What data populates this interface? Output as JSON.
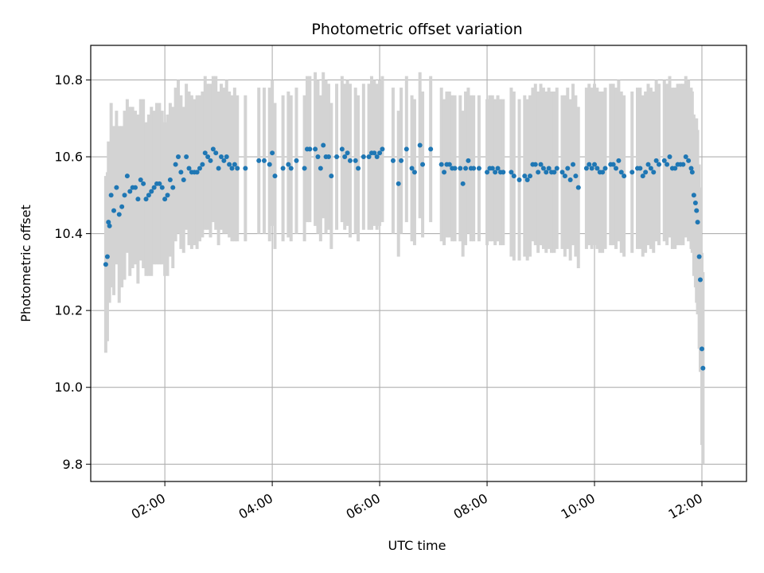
{
  "chart_data": {
    "type": "scatter",
    "title": "Photometric offset variation",
    "xlabel": "UTC time",
    "ylabel": "Photometric offset",
    "x_unit": "hours (UTC)",
    "xlim": [
      0.62,
      12.83
    ],
    "ylim": [
      9.755,
      10.89
    ],
    "xticks": [
      2,
      4,
      6,
      8,
      10,
      12
    ],
    "xtick_labels": [
      "02:00",
      "04:00",
      "06:00",
      "08:00",
      "10:00",
      "12:00"
    ],
    "yticks": [
      9.8,
      10.0,
      10.2,
      10.4,
      10.6,
      10.8
    ],
    "ytick_labels": [
      "9.8",
      "10.0",
      "10.2",
      "10.4",
      "10.6",
      "10.8"
    ],
    "grid": true,
    "colors": {
      "points": "#1f77b4",
      "errorbars": "#d3d3d3",
      "grid": "#b0b0b0"
    },
    "series": [
      {
        "marker": "point",
        "error_bars": true,
        "points": [
          [
            0.9,
            10.32,
            0.23
          ],
          [
            0.93,
            10.34,
            0.22
          ],
          [
            0.95,
            10.43,
            0.21
          ],
          [
            0.97,
            10.42,
            0.2
          ],
          [
            1.0,
            10.5,
            0.24
          ],
          [
            1.05,
            10.46,
            0.22
          ],
          [
            1.1,
            10.52,
            0.2
          ],
          [
            1.15,
            10.45,
            0.23
          ],
          [
            1.2,
            10.47,
            0.21
          ],
          [
            1.25,
            10.5,
            0.22
          ],
          [
            1.3,
            10.55,
            0.2
          ],
          [
            1.35,
            10.51,
            0.22
          ],
          [
            1.4,
            10.52,
            0.21
          ],
          [
            1.45,
            10.52,
            0.2
          ],
          [
            1.5,
            10.49,
            0.22
          ],
          [
            1.55,
            10.54,
            0.21
          ],
          [
            1.6,
            10.53,
            0.22
          ],
          [
            1.65,
            10.49,
            0.2
          ],
          [
            1.7,
            10.5,
            0.21
          ],
          [
            1.75,
            10.51,
            0.22
          ],
          [
            1.8,
            10.52,
            0.2
          ],
          [
            1.85,
            10.53,
            0.21
          ],
          [
            1.9,
            10.53,
            0.21
          ],
          [
            1.95,
            10.52,
            0.2
          ],
          [
            2.0,
            10.49,
            0.2
          ],
          [
            2.05,
            10.5,
            0.21
          ],
          [
            2.1,
            10.54,
            0.2
          ],
          [
            2.15,
            10.52,
            0.21
          ],
          [
            2.2,
            10.58,
            0.2
          ],
          [
            2.25,
            10.6,
            0.2
          ],
          [
            2.3,
            10.56,
            0.2
          ],
          [
            2.35,
            10.54,
            0.19
          ],
          [
            2.4,
            10.6,
            0.19
          ],
          [
            2.45,
            10.57,
            0.2
          ],
          [
            2.5,
            10.56,
            0.2
          ],
          [
            2.55,
            10.56,
            0.19
          ],
          [
            2.6,
            10.56,
            0.2
          ],
          [
            2.65,
            10.57,
            0.19
          ],
          [
            2.7,
            10.58,
            0.19
          ],
          [
            2.75,
            10.61,
            0.2
          ],
          [
            2.8,
            10.6,
            0.19
          ],
          [
            2.85,
            10.59,
            0.2
          ],
          [
            2.9,
            10.62,
            0.19
          ],
          [
            2.95,
            10.61,
            0.2
          ],
          [
            3.0,
            10.57,
            0.2
          ],
          [
            3.05,
            10.6,
            0.19
          ],
          [
            3.1,
            10.59,
            0.19
          ],
          [
            3.15,
            10.6,
            0.2
          ],
          [
            3.2,
            10.58,
            0.19
          ],
          [
            3.25,
            10.57,
            0.19
          ],
          [
            3.3,
            10.58,
            0.2
          ],
          [
            3.35,
            10.57,
            0.19
          ],
          [
            3.5,
            10.57,
            0.19
          ],
          [
            3.75,
            10.59,
            0.19
          ],
          [
            3.85,
            10.59,
            0.19
          ],
          [
            3.95,
            10.58,
            0.2
          ],
          [
            4.0,
            10.61,
            0.19
          ],
          [
            4.05,
            10.55,
            0.19
          ],
          [
            4.2,
            10.57,
            0.19
          ],
          [
            4.3,
            10.58,
            0.19
          ],
          [
            4.35,
            10.57,
            0.19
          ],
          [
            4.45,
            10.59,
            0.19
          ],
          [
            4.6,
            10.57,
            0.19
          ],
          [
            4.65,
            10.62,
            0.19
          ],
          [
            4.7,
            10.62,
            0.19
          ],
          [
            4.8,
            10.62,
            0.2
          ],
          [
            4.85,
            10.6,
            0.2
          ],
          [
            4.9,
            10.57,
            0.19
          ],
          [
            4.95,
            10.63,
            0.19
          ],
          [
            5.0,
            10.6,
            0.2
          ],
          [
            5.05,
            10.6,
            0.19
          ],
          [
            5.1,
            10.55,
            0.19
          ],
          [
            5.2,
            10.6,
            0.19
          ],
          [
            5.3,
            10.62,
            0.19
          ],
          [
            5.35,
            10.6,
            0.19
          ],
          [
            5.4,
            10.61,
            0.19
          ],
          [
            5.45,
            10.59,
            0.2
          ],
          [
            5.55,
            10.59,
            0.19
          ],
          [
            5.6,
            10.57,
            0.19
          ],
          [
            5.7,
            10.6,
            0.19
          ],
          [
            5.8,
            10.6,
            0.19
          ],
          [
            5.85,
            10.61,
            0.2
          ],
          [
            5.9,
            10.61,
            0.19
          ],
          [
            5.95,
            10.6,
            0.19
          ],
          [
            6.0,
            10.61,
            0.19
          ],
          [
            6.05,
            10.62,
            0.19
          ],
          [
            6.25,
            10.59,
            0.19
          ],
          [
            6.35,
            10.53,
            0.19
          ],
          [
            6.4,
            10.59,
            0.19
          ],
          [
            6.5,
            10.62,
            0.19
          ],
          [
            6.6,
            10.57,
            0.19
          ],
          [
            6.65,
            10.56,
            0.19
          ],
          [
            6.75,
            10.63,
            0.19
          ],
          [
            6.8,
            10.58,
            0.19
          ],
          [
            6.95,
            10.62,
            0.19
          ],
          [
            7.15,
            10.58,
            0.2
          ],
          [
            7.2,
            10.56,
            0.19
          ],
          [
            7.25,
            10.58,
            0.19
          ],
          [
            7.3,
            10.58,
            0.19
          ],
          [
            7.35,
            10.57,
            0.19
          ],
          [
            7.4,
            10.57,
            0.19
          ],
          [
            7.5,
            10.57,
            0.19
          ],
          [
            7.55,
            10.53,
            0.19
          ],
          [
            7.6,
            10.57,
            0.2
          ],
          [
            7.65,
            10.59,
            0.19
          ],
          [
            7.7,
            10.57,
            0.19
          ],
          [
            7.75,
            10.57,
            0.19
          ],
          [
            7.85,
            10.57,
            0.19
          ],
          [
            8.0,
            10.56,
            0.19
          ],
          [
            8.05,
            10.57,
            0.19
          ],
          [
            8.1,
            10.57,
            0.19
          ],
          [
            8.15,
            10.56,
            0.19
          ],
          [
            8.2,
            10.57,
            0.19
          ],
          [
            8.25,
            10.56,
            0.19
          ],
          [
            8.3,
            10.56,
            0.19
          ],
          [
            8.45,
            10.56,
            0.22
          ],
          [
            8.5,
            10.55,
            0.22
          ],
          [
            8.6,
            10.54,
            0.21
          ],
          [
            8.7,
            10.55,
            0.21
          ],
          [
            8.75,
            10.54,
            0.21
          ],
          [
            8.8,
            10.55,
            0.21
          ],
          [
            8.85,
            10.58,
            0.2
          ],
          [
            8.9,
            10.58,
            0.21
          ],
          [
            8.95,
            10.56,
            0.21
          ],
          [
            9.0,
            10.58,
            0.21
          ],
          [
            9.05,
            10.57,
            0.21
          ],
          [
            9.1,
            10.56,
            0.21
          ],
          [
            9.15,
            10.57,
            0.21
          ],
          [
            9.2,
            10.56,
            0.21
          ],
          [
            9.25,
            10.56,
            0.21
          ],
          [
            9.3,
            10.57,
            0.21
          ],
          [
            9.4,
            10.56,
            0.2
          ],
          [
            9.45,
            10.55,
            0.21
          ],
          [
            9.5,
            10.57,
            0.21
          ],
          [
            9.55,
            10.54,
            0.21
          ],
          [
            9.6,
            10.58,
            0.21
          ],
          [
            9.65,
            10.55,
            0.21
          ],
          [
            9.7,
            10.52,
            0.21
          ],
          [
            9.85,
            10.57,
            0.21
          ],
          [
            9.9,
            10.58,
            0.21
          ],
          [
            9.95,
            10.57,
            0.21
          ],
          [
            10.0,
            10.58,
            0.21
          ],
          [
            10.05,
            10.57,
            0.21
          ],
          [
            10.1,
            10.56,
            0.21
          ],
          [
            10.15,
            10.56,
            0.21
          ],
          [
            10.2,
            10.57,
            0.21
          ],
          [
            10.3,
            10.58,
            0.21
          ],
          [
            10.35,
            10.58,
            0.21
          ],
          [
            10.4,
            10.57,
            0.21
          ],
          [
            10.45,
            10.59,
            0.21
          ],
          [
            10.5,
            10.56,
            0.21
          ],
          [
            10.55,
            10.55,
            0.21
          ],
          [
            10.7,
            10.56,
            0.21
          ],
          [
            10.8,
            10.57,
            0.21
          ],
          [
            10.85,
            10.57,
            0.21
          ],
          [
            10.9,
            10.55,
            0.21
          ],
          [
            10.95,
            10.56,
            0.21
          ],
          [
            11.0,
            10.58,
            0.21
          ],
          [
            11.05,
            10.57,
            0.21
          ],
          [
            11.1,
            10.56,
            0.21
          ],
          [
            11.15,
            10.59,
            0.21
          ],
          [
            11.2,
            10.58,
            0.21
          ],
          [
            11.3,
            10.59,
            0.21
          ],
          [
            11.35,
            10.58,
            0.21
          ],
          [
            11.4,
            10.6,
            0.21
          ],
          [
            11.45,
            10.57,
            0.21
          ],
          [
            11.5,
            10.57,
            0.21
          ],
          [
            11.55,
            10.58,
            0.21
          ],
          [
            11.6,
            10.58,
            0.21
          ],
          [
            11.65,
            10.58,
            0.21
          ],
          [
            11.7,
            10.6,
            0.21
          ],
          [
            11.75,
            10.59,
            0.21
          ],
          [
            11.8,
            10.57,
            0.21
          ],
          [
            11.82,
            10.56,
            0.21
          ],
          [
            11.85,
            10.5,
            0.21
          ],
          [
            11.88,
            10.48,
            0.22
          ],
          [
            11.9,
            10.46,
            0.24
          ],
          [
            11.92,
            10.43,
            0.24
          ],
          [
            11.95,
            10.34,
            0.24
          ],
          [
            11.97,
            10.28,
            0.24
          ],
          [
            12.0,
            10.1,
            0.25
          ],
          [
            12.02,
            10.05,
            0.25
          ]
        ]
      }
    ]
  }
}
